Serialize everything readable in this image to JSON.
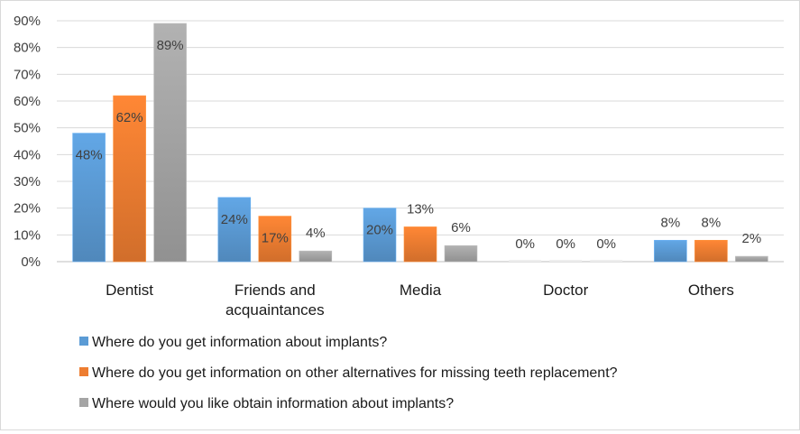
{
  "chart_data": {
    "type": "bar",
    "title": "",
    "xlabel": "",
    "ylabel": "",
    "ylim": [
      0,
      90
    ],
    "y_ticks": [
      "0%",
      "10%",
      "20%",
      "30%",
      "40%",
      "50%",
      "60%",
      "70%",
      "80%",
      "90%"
    ],
    "grid": true,
    "legend_position": "bottom",
    "categories": [
      "Dentist",
      [
        "Friends and",
        "acquaintances"
      ],
      "Media",
      "Doctor",
      "Others"
    ],
    "series": [
      {
        "name": "Where do you get information about implants?",
        "color": "#5b9bd5",
        "values": [
          48,
          24,
          20,
          0,
          8
        ],
        "labels": [
          "48%",
          "24%",
          "20%",
          "0%",
          "8%"
        ]
      },
      {
        "name": "Where do you get information on other alternatives for missing teeth replacement?",
        "color": "#ed7d31",
        "values": [
          62,
          17,
          13,
          0,
          8
        ],
        "labels": [
          "62%",
          "17%",
          "13%",
          "0%",
          "8%"
        ]
      },
      {
        "name": "Where would you like obtain information about implants?",
        "color": "#a5a5a5",
        "values": [
          89,
          4,
          6,
          0,
          2
        ],
        "labels": [
          "89%",
          "4%",
          "6%",
          "0%",
          "2%"
        ]
      }
    ]
  }
}
